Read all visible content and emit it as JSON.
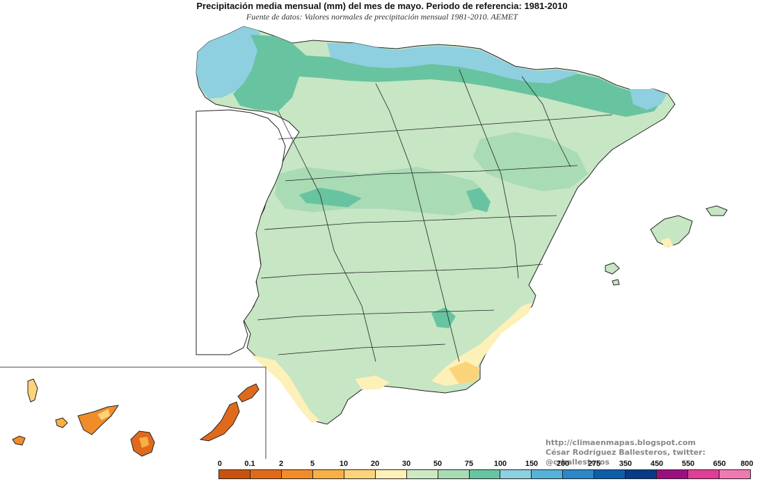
{
  "map": {
    "title": "Precipitación media mensual (mm) del mes de mayo. Periodo de referencia: 1981-2010",
    "subtitle": "Fuente de datos: Valores normales de precipitación mensual 1981-2010. AEMET",
    "credits": {
      "line1": "http://climaenmapas.blogspot.com",
      "line2": "César Rodríguez Ballesteros, twitter: @crballesteros"
    }
  },
  "legend": {
    "labels": [
      "0",
      "0.1",
      "2",
      "5",
      "10",
      "20",
      "30",
      "50",
      "75",
      "100",
      "150",
      "200",
      "275",
      "350",
      "450",
      "550",
      "650",
      "800"
    ],
    "colors": [
      "#c8530f",
      "#e06a1c",
      "#f08c2a",
      "#f7b045",
      "#fbd37a",
      "#fdf0b8",
      "#cde9c3",
      "#a9dbb5",
      "#68c3a0",
      "#8ecfe0",
      "#56b2d9",
      "#2c87c5",
      "#0d5ea8",
      "#083a85",
      "#990f7f",
      "#de3e96",
      "#ef79b3"
    ]
  }
}
